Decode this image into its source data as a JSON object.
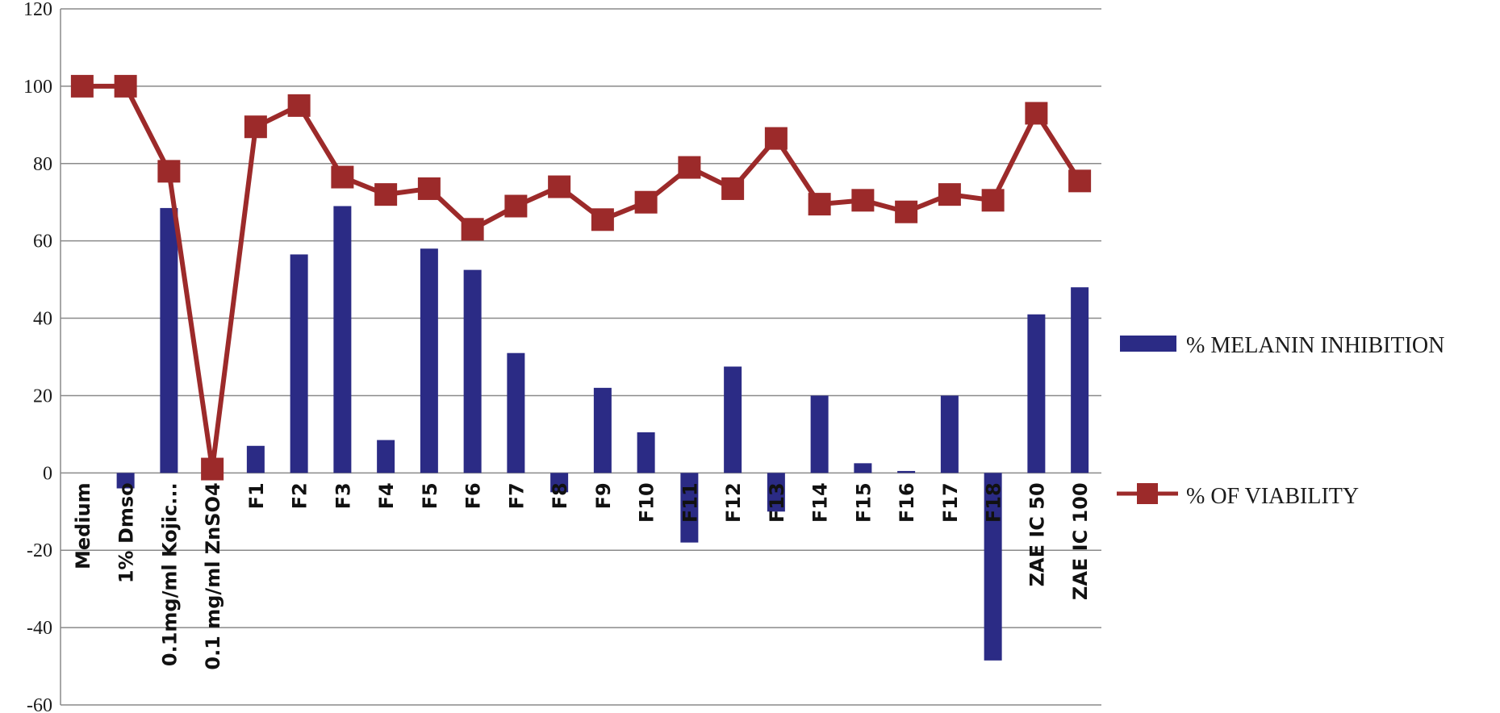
{
  "chart_data": {
    "type": "bar",
    "categories": [
      "Medium",
      "1% Dmso",
      "0.1mg/ml Kojic...",
      "0.1 mg/ml ZnSO4",
      "F1",
      "F2",
      "F3",
      "F4",
      "F5",
      "F6",
      "F7",
      "F8",
      "F9",
      "F10",
      "F11",
      "F12",
      "F13",
      "F14",
      "F15",
      "F16",
      "F17",
      "F18",
      "ZAE IC 50",
      "ZAE IC 100"
    ],
    "series": [
      {
        "name": "% MELANIN INHIBITION",
        "kind": "bar",
        "color": "#2B2B85",
        "values": [
          0,
          -4,
          68.5,
          0,
          7,
          56.5,
          69,
          8.5,
          58,
          52.5,
          31,
          -5,
          22,
          10.5,
          -18,
          27.5,
          -10,
          20,
          2.5,
          0.5,
          20,
          -48.5,
          41,
          48
        ]
      },
      {
        "name": "% OF VIABILITY",
        "kind": "line",
        "color": "#9C2A2A",
        "values": [
          100,
          100,
          78,
          1,
          89.5,
          95,
          76.5,
          72,
          73.5,
          63,
          69,
          74,
          65.5,
          70,
          79,
          73.5,
          86.5,
          69.5,
          70.5,
          67.5,
          72,
          70.5,
          93,
          75.5
        ]
      }
    ],
    "ylim": [
      -60,
      120
    ],
    "yticks": [
      -60,
      -40,
      -20,
      0,
      20,
      40,
      60,
      80,
      100,
      120
    ],
    "grid": true,
    "legend_position": "right"
  }
}
